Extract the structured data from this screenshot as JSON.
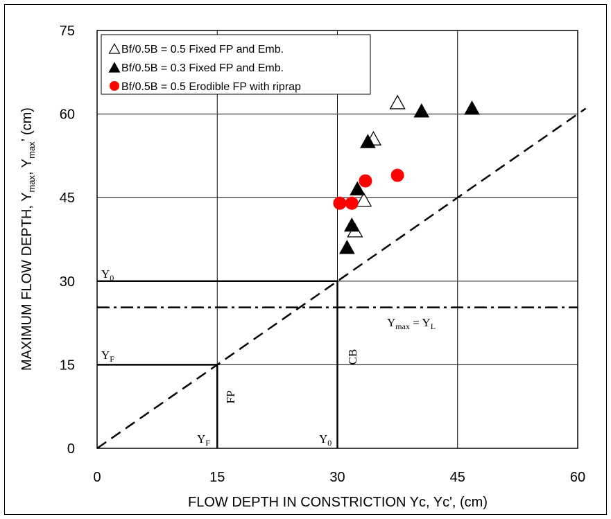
{
  "chart_data": {
    "type": "scatter",
    "xlabel": "FLOW DEPTH IN CONSTRICTION Yc, Yc', (cm)",
    "ylabel_parts": [
      "MAXIMUM FLOW DEPTH, Y",
      "max",
      ", Y",
      "max",
      "’ (cm)"
    ],
    "xlim": [
      0,
      60
    ],
    "ylim": [
      0,
      75
    ],
    "xticks": [
      "0",
      "15",
      "30",
      "45",
      "60"
    ],
    "yticks": [
      "0",
      "15",
      "30",
      "45",
      "60",
      "75"
    ],
    "grid": true,
    "legend_position": "top-left",
    "series": [
      {
        "name": "Bf/0.5B = 0.5 Fixed FP and Emb.",
        "marker": "triangle-open",
        "color": "#000000",
        "points": [
          [
            37.5,
            62
          ],
          [
            34.5,
            55.5
          ],
          [
            33.3,
            44.5
          ],
          [
            32.2,
            39
          ]
        ]
      },
      {
        "name": "Bf/0.5B = 0.3 Fixed FP and Emb.",
        "marker": "triangle-filled",
        "color": "#000000",
        "points": [
          [
            40.5,
            60.5
          ],
          [
            46.8,
            61
          ],
          [
            33.8,
            55
          ],
          [
            32.5,
            46.5
          ],
          [
            31.8,
            40
          ],
          [
            31.2,
            36
          ]
        ]
      },
      {
        "name": "Bf/0.5B = 0.5 Erodible FP with riprap",
        "marker": "circle-filled",
        "color": "#ff0000",
        "points": [
          [
            30.3,
            44
          ],
          [
            31.8,
            44
          ],
          [
            33.5,
            48
          ],
          [
            37.5,
            49
          ]
        ]
      }
    ],
    "reference_lines": [
      {
        "kind": "dashed-diagonal",
        "from": [
          0,
          0
        ],
        "to": [
          61,
          61
        ]
      },
      {
        "kind": "dash-dot-horizontal",
        "y": 25.3
      },
      {
        "kind": "solid-step",
        "points": [
          [
            0,
            30
          ],
          [
            30,
            30
          ],
          [
            30,
            0
          ]
        ]
      },
      {
        "kind": "solid-step",
        "points": [
          [
            0,
            15
          ],
          [
            15,
            15
          ],
          [
            15,
            0
          ]
        ]
      }
    ],
    "annotations": {
      "y0_left": {
        "base": "Y",
        "sub": "0"
      },
      "yf_left": {
        "base": "Y",
        "sub": "F"
      },
      "yf_bottom": {
        "base": "Y",
        "sub": "F"
      },
      "y0_bottom": {
        "base": "Y",
        "sub": "0"
      },
      "ymax_eq": {
        "base1": "Y",
        "sub1": "max",
        "mid": " = Y",
        "sub2": "L"
      },
      "cb": "CB",
      "fp": "FP"
    }
  }
}
